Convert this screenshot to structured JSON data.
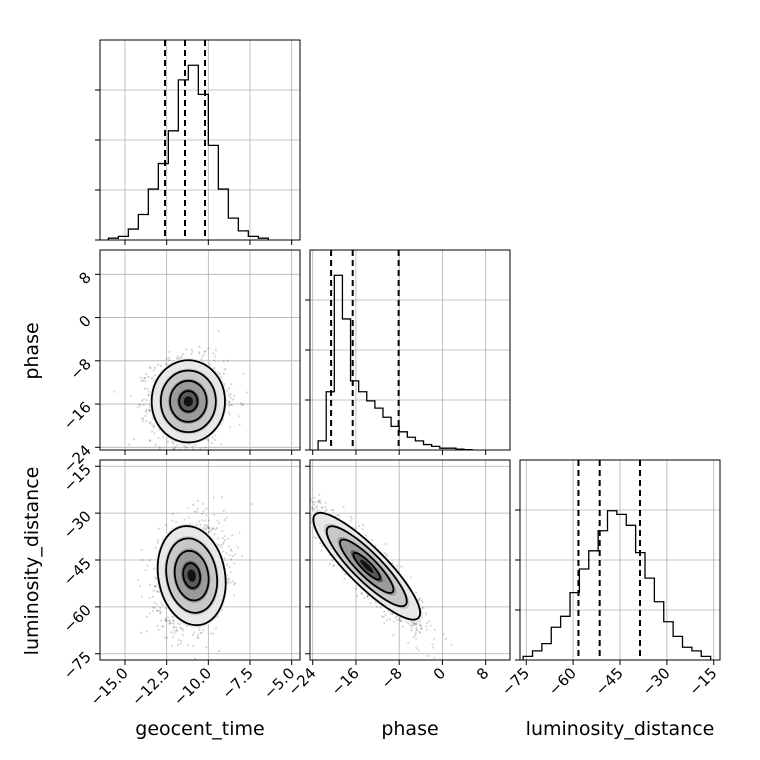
{
  "chart_data": {
    "type": "corner",
    "parameters": [
      "geocent_time",
      "phase",
      "luminosity_distance"
    ],
    "axis_labels": {
      "x": [
        "geocent_time",
        "phase",
        "luminosity_distance"
      ],
      "y": [
        "phase",
        "luminosity_distance"
      ]
    },
    "ranges": {
      "geocent_time": [
        -16.5,
        -4.5
      ],
      "phase": [
        -24.5,
        12.5
      ],
      "luminosity_distance": [
        -77,
        -13
      ]
    },
    "ticks": {
      "geocent_time": {
        "values": [
          -15.0,
          -12.5,
          -10.0,
          -7.5,
          -5.0
        ],
        "labels": [
          "−15.0",
          "−12.5",
          "−10.0",
          "−7.5",
          "−5.0"
        ]
      },
      "phase": {
        "values": [
          -24,
          -16,
          -8,
          0,
          8
        ],
        "labels": [
          "−24",
          "−16",
          "−8",
          "0",
          "8"
        ]
      },
      "luminosity_distance_x": {
        "values": [
          -75,
          -60,
          -45,
          -30,
          -15
        ],
        "labels": [
          "−75",
          "−60",
          "−45",
          "−30",
          "−15"
        ]
      },
      "luminosity_distance_y": {
        "values": [
          -75,
          -60,
          -45,
          -30,
          -15
        ],
        "labels": [
          "−75",
          "−60",
          "−45",
          "−30",
          "−15"
        ]
      }
    },
    "histograms": {
      "geocent_time": {
        "bin_edges": [
          -16,
          -15.4,
          -14.8,
          -14.2,
          -13.6,
          -13,
          -12.4,
          -11.8,
          -11.2,
          -10.6,
          -10,
          -9.4,
          -8.8,
          -8.2,
          -7.6,
          -7,
          -6.4
        ],
        "counts": [
          0.01,
          0.02,
          0.06,
          0.14,
          0.28,
          0.42,
          0.6,
          0.88,
          0.96,
          0.8,
          0.52,
          0.28,
          0.12,
          0.05,
          0.02,
          0.01
        ],
        "quantiles": [
          -12.6,
          -11.4,
          -10.2
        ]
      },
      "phase": {
        "bin_edges": [
          -23,
          -21.5,
          -20,
          -18.5,
          -17,
          -15.5,
          -14,
          -12.5,
          -11,
          -9.5,
          -8,
          -6.5,
          -5,
          -3.5,
          -2,
          -0.5,
          1,
          2.5,
          4,
          5.5
        ],
        "counts": [
          0.05,
          0.32,
          0.96,
          0.72,
          0.38,
          0.32,
          0.27,
          0.23,
          0.18,
          0.13,
          0.1,
          0.07,
          0.05,
          0.03,
          0.02,
          0.01,
          0.01,
          0.005,
          0.002
        ],
        "quantiles": [
          -20.6,
          -16.6,
          -8.1
        ]
      },
      "luminosity_distance": {
        "bin_edges": [
          -76,
          -73,
          -70,
          -67,
          -64,
          -61,
          -58,
          -55,
          -52,
          -49,
          -46,
          -43,
          -40,
          -37,
          -34,
          -31,
          -28,
          -25,
          -22,
          -19,
          -16
        ],
        "counts": [
          0.02,
          0.05,
          0.09,
          0.18,
          0.24,
          0.37,
          0.5,
          0.6,
          0.71,
          0.82,
          0.8,
          0.74,
          0.59,
          0.45,
          0.32,
          0.21,
          0.13,
          0.07,
          0.05,
          0.02
        ],
        "quantiles": [
          -58.3,
          -51.5,
          -38.6
        ]
      }
    },
    "scatter_panels": [
      {
        "x": "geocent_time",
        "y": "phase",
        "mean": [
          -11.2,
          -15.5
        ],
        "sd": [
          1.1,
          3.8
        ],
        "corr": 0.0
      },
      {
        "x": "geocent_time",
        "y": "luminosity_distance",
        "mean": [
          -11.0,
          -50.0
        ],
        "sd": [
          1.0,
          8.0
        ],
        "corr": 0.2
      },
      {
        "x": "phase",
        "y": "luminosity_distance",
        "mean": [
          -14.0,
          -47.0
        ],
        "sd": [
          4.8,
          9.0
        ],
        "corr": -0.9
      }
    ],
    "grid": true
  }
}
